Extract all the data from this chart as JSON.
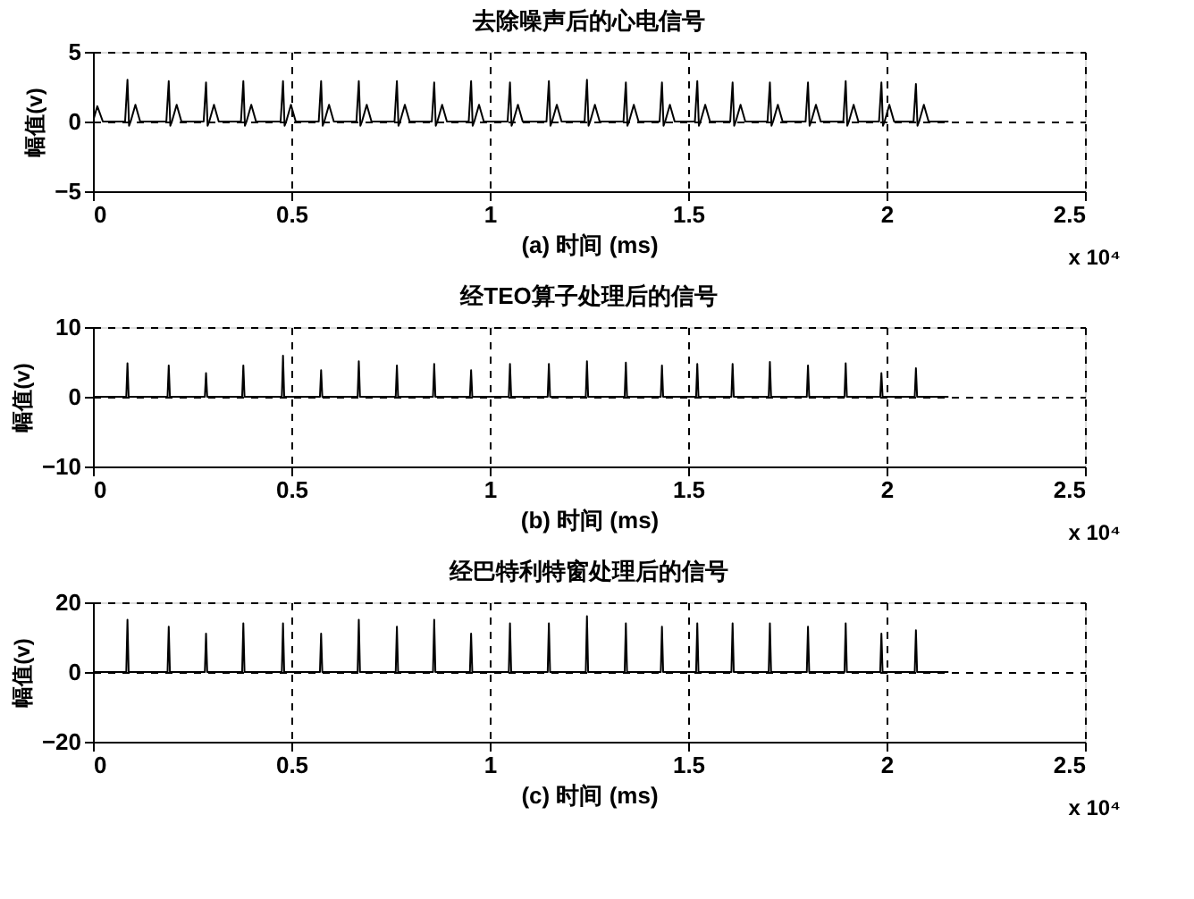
{
  "chart_data": [
    {
      "type": "line",
      "title": "去除噪声后的心电信号",
      "xlabel": "(a) 时间 (ms)",
      "ylabel": "幅值(v)",
      "annotations": [
        "x 10⁴"
      ],
      "xlim": [
        0,
        2.5
      ],
      "xticks": [
        0,
        0.5,
        1,
        1.5,
        2,
        2.5
      ],
      "ylim": [
        -5,
        5
      ],
      "yticks": [
        -5,
        0,
        5
      ],
      "grid": true,
      "series": [
        {
          "color": "#000000",
          "line_style": "solid",
          "x": [
            0,
            0.011,
            0.025,
            0.081,
            0.087,
            0.091,
            0.095,
            0.107,
            0.119,
            0.185,
            0.191,
            0.195,
            0.199,
            0.211,
            0.223,
            0.279,
            0.285,
            0.289,
            0.293,
            0.305,
            0.317,
            0.373,
            0.379,
            0.383,
            0.387,
            0.399,
            0.411,
            0.473,
            0.479,
            0.483,
            0.487,
            0.499,
            0.511,
            0.569,
            0.575,
            0.579,
            0.583,
            0.595,
            0.607,
            0.664,
            0.67,
            0.674,
            0.678,
            0.69,
            0.702,
            0.76,
            0.766,
            0.77,
            0.774,
            0.786,
            0.798,
            0.854,
            0.86,
            0.864,
            0.868,
            0.88,
            0.892,
            0.947,
            0.953,
            0.957,
            0.961,
            0.973,
            0.985,
            1.045,
            1.051,
            1.055,
            1.059,
            1.071,
            1.083,
            1.143,
            1.149,
            1.153,
            1.157,
            1.169,
            1.181,
            1.239,
            1.245,
            1.249,
            1.253,
            1.265,
            1.277,
            1.337,
            1.343,
            1.347,
            1.351,
            1.363,
            1.375,
            1.428,
            1.434,
            1.438,
            1.442,
            1.454,
            1.466,
            1.517,
            1.523,
            1.527,
            1.531,
            1.543,
            1.555,
            1.606,
            1.612,
            1.616,
            1.62,
            1.632,
            1.644,
            1.7,
            1.706,
            1.71,
            1.714,
            1.726,
            1.738,
            1.796,
            1.802,
            1.806,
            1.81,
            1.822,
            1.834,
            1.891,
            1.897,
            1.901,
            1.905,
            1.917,
            1.929,
            1.981,
            1.987,
            1.991,
            1.995,
            2.007,
            2.019,
            2.068,
            2.074,
            2.078,
            2.082,
            2.094,
            2.106,
            2.156
          ],
          "values": [
            0,
            1.1,
            0,
            0,
            3.0,
            -0.3,
            0,
            1.2,
            0,
            0,
            2.9,
            -0.3,
            0,
            1.2,
            0,
            0,
            2.8,
            -0.3,
            0,
            1.2,
            0,
            0,
            2.9,
            -0.3,
            0,
            1.2,
            0,
            0,
            2.9,
            -0.3,
            0,
            1.2,
            0,
            0,
            2.9,
            -0.3,
            0,
            1.2,
            0,
            0,
            2.9,
            -0.3,
            0,
            1.2,
            0,
            0,
            2.9,
            -0.3,
            0,
            1.2,
            0,
            0,
            2.8,
            -0.3,
            0,
            1.2,
            0,
            0,
            2.9,
            -0.3,
            0,
            1.2,
            0,
            0,
            2.8,
            -0.3,
            0,
            1.2,
            0,
            0,
            2.9,
            -0.3,
            0,
            1.2,
            0,
            0,
            3.0,
            -0.3,
            0,
            1.2,
            0,
            0,
            2.8,
            -0.3,
            0,
            1.2,
            0,
            0,
            2.8,
            -0.3,
            0,
            1.2,
            0,
            0,
            2.9,
            -0.3,
            0,
            1.2,
            0,
            0,
            2.8,
            -0.3,
            0,
            1.2,
            0,
            0,
            2.8,
            -0.3,
            0,
            1.2,
            0,
            0,
            2.8,
            -0.3,
            0,
            1.2,
            0,
            0,
            2.9,
            -0.3,
            0,
            1.2,
            0,
            0,
            2.8,
            -0.3,
            0,
            1.2,
            0,
            0,
            2.7,
            -0.3,
            0,
            1.2,
            0,
            0
          ]
        }
      ]
    },
    {
      "type": "line",
      "title": "经TEO算子处理后的信号",
      "xlabel": "(b) 时间 (ms)",
      "ylabel": "幅值(v)",
      "annotations": [
        "x 10⁴"
      ],
      "xlim": [
        0,
        2.5
      ],
      "xticks": [
        0,
        0.5,
        1,
        1.5,
        2,
        2.5
      ],
      "ylim": [
        -10,
        10
      ],
      "yticks": [
        -10,
        0,
        10
      ],
      "grid": true,
      "series": [
        {
          "color": "#000000",
          "line_style": "solid",
          "x": [
            0,
            0.084,
            0.087,
            0.09,
            0.188,
            0.191,
            0.194,
            0.282,
            0.285,
            0.288,
            0.376,
            0.379,
            0.382,
            0.476,
            0.479,
            0.482,
            0.572,
            0.575,
            0.578,
            0.667,
            0.67,
            0.673,
            0.763,
            0.766,
            0.769,
            0.857,
            0.86,
            0.863,
            0.95,
            0.953,
            0.956,
            1.048,
            1.051,
            1.054,
            1.146,
            1.149,
            1.152,
            1.242,
            1.245,
            1.248,
            1.34,
            1.343,
            1.346,
            1.431,
            1.434,
            1.437,
            1.52,
            1.523,
            1.526,
            1.609,
            1.612,
            1.615,
            1.703,
            1.706,
            1.709,
            1.799,
            1.802,
            1.805,
            1.894,
            1.897,
            1.9,
            1.984,
            1.987,
            1.99,
            2.071,
            2.074,
            2.077,
            2.156
          ],
          "values": [
            0,
            0,
            4.8,
            0,
            0,
            4.5,
            0,
            0,
            3.4,
            0,
            0,
            4.5,
            0,
            0,
            5.9,
            0,
            0,
            3.8,
            0,
            0,
            5.1,
            0,
            0,
            4.5,
            0,
            0,
            4.7,
            0,
            0,
            3.8,
            0,
            0,
            4.7,
            0,
            0,
            4.7,
            0,
            0,
            5.1,
            0,
            0,
            4.9,
            0,
            0,
            4.5,
            0,
            0,
            4.7,
            0,
            0,
            4.7,
            0,
            0,
            5.0,
            0,
            0,
            4.5,
            0,
            0,
            4.8,
            0,
            0,
            3.4,
            0,
            0,
            4.1,
            0,
            0
          ]
        }
      ]
    },
    {
      "type": "line",
      "title": "经巴特利特窗处理后的信号",
      "xlabel": "(c) 时间 (ms)",
      "ylabel": "幅值(v)",
      "annotations": [
        "x 10⁴"
      ],
      "xlim": [
        0,
        2.5
      ],
      "xticks": [
        0,
        0.5,
        1,
        1.5,
        2,
        2.5
      ],
      "ylim": [
        -20,
        20
      ],
      "yticks": [
        -20,
        0,
        20
      ],
      "grid": true,
      "series": [
        {
          "color": "#000000",
          "line_style": "solid",
          "x": [
            0,
            0.084,
            0.087,
            0.09,
            0.188,
            0.191,
            0.194,
            0.282,
            0.285,
            0.288,
            0.376,
            0.379,
            0.382,
            0.476,
            0.479,
            0.482,
            0.572,
            0.575,
            0.578,
            0.667,
            0.67,
            0.673,
            0.763,
            0.766,
            0.769,
            0.857,
            0.86,
            0.863,
            0.95,
            0.953,
            0.956,
            1.048,
            1.051,
            1.054,
            1.146,
            1.149,
            1.152,
            1.242,
            1.245,
            1.248,
            1.34,
            1.343,
            1.346,
            1.431,
            1.434,
            1.437,
            1.52,
            1.523,
            1.526,
            1.609,
            1.612,
            1.615,
            1.703,
            1.706,
            1.709,
            1.799,
            1.802,
            1.805,
            1.894,
            1.897,
            1.9,
            1.984,
            1.987,
            1.99,
            2.071,
            2.074,
            2.077,
            2.156
          ],
          "values": [
            0,
            0,
            15,
            0,
            0,
            13,
            0,
            0,
            11,
            0,
            0,
            14,
            0,
            0,
            14,
            0,
            0,
            11,
            0,
            0,
            15,
            0,
            0,
            13,
            0,
            0,
            15,
            0,
            0,
            11,
            0,
            0,
            14,
            0,
            0,
            14,
            0,
            0,
            16,
            0,
            0,
            14,
            0,
            0,
            13,
            0,
            0,
            14,
            0,
            0,
            14,
            0,
            0,
            14,
            0,
            0,
            13,
            0,
            0,
            14,
            0,
            0,
            11,
            0,
            0,
            12,
            0,
            0
          ]
        }
      ]
    }
  ]
}
